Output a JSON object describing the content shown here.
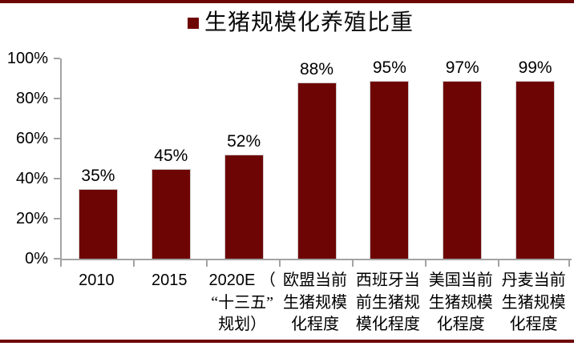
{
  "chart_data": {
    "type": "bar",
    "title": "",
    "legend": "生猪规模化养殖比重",
    "legend_position": "top",
    "categories": [
      "2010",
      "2015",
      "2020E（“十三五”规划）",
      "欧盟当前生猪规模化程度",
      "西班牙当前生猪规模化程度",
      "美国当前生猪规模化程度",
      "丹麦当前生猪规模化程度"
    ],
    "values": [
      35,
      45,
      52,
      88,
      95,
      97,
      99
    ],
    "value_labels": [
      "35%",
      "45%",
      "52%",
      "88%",
      "95%",
      "97%",
      "99%"
    ],
    "tick_lines": [
      [
        "2010"
      ],
      [
        "2015"
      ],
      [
        "2020E （",
        "“十三五”",
        "规划）"
      ],
      [
        "欧盟当前",
        "生猪规模",
        "化程度"
      ],
      [
        "西班牙当",
        "前生猪规",
        "模化程度"
      ],
      [
        "美国当前",
        "生猪规模",
        "化程度"
      ],
      [
        "丹麦当前",
        "生猪规模",
        "化程度"
      ]
    ],
    "y_ticks": [
      "100%",
      "80%",
      "60%",
      "40%",
      "20%",
      "0%"
    ],
    "xlabel": "",
    "ylabel": "",
    "ylim": [
      0,
      100
    ],
    "grid": false,
    "colors": {
      "bar": "#6E0505",
      "rule": "#6E0505",
      "axis": "#A3A3A3",
      "text": "#000000"
    }
  }
}
